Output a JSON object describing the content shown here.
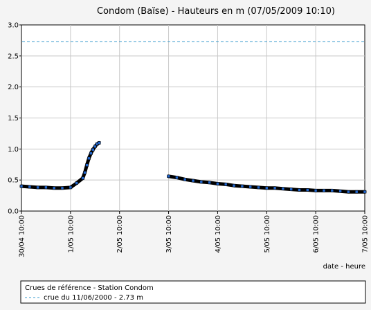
{
  "chart_data": {
    "type": "line",
    "title": "Condom (Baïse) - Hauteurs en m (07/05/2009 10:10)",
    "xlabel": "date - heure",
    "ylabel": "",
    "ylim": [
      0,
      3.0
    ],
    "xlim": [
      "30/04 10:00",
      "7/05 10:00"
    ],
    "y_ticks": [
      "0.0",
      "0.5",
      "1.0",
      "1.5",
      "2.0",
      "2.5",
      "3.0"
    ],
    "x_ticks": [
      "30/04 10:00",
      "1/05 10:00",
      "2/05 10:00",
      "3/05 10:00",
      "4/05 10:00",
      "5/05 10:00",
      "6/05 10:00",
      "7/05 10:00"
    ],
    "grid": true,
    "series": [
      {
        "name": "",
        "color": "#000000",
        "segments": [
          [
            {
              "x": "30/04 10:00",
              "y": 0.4
            },
            {
              "x": "30/04 14:00",
              "y": 0.39
            },
            {
              "x": "30/04 18:00",
              "y": 0.38
            },
            {
              "x": "30/04 22:00",
              "y": 0.38
            },
            {
              "x": "1/05 02:00",
              "y": 0.37
            },
            {
              "x": "1/05 06:00",
              "y": 0.37
            },
            {
              "x": "1/05 10:00",
              "y": 0.38
            },
            {
              "x": "1/05 13:00",
              "y": 0.45
            },
            {
              "x": "1/05 16:00",
              "y": 0.53
            },
            {
              "x": "1/05 17:00",
              "y": 0.62
            },
            {
              "x": "1/05 18:00",
              "y": 0.74
            },
            {
              "x": "1/05 19:00",
              "y": 0.85
            },
            {
              "x": "1/05 20:00",
              "y": 0.93
            },
            {
              "x": "1/05 21:00",
              "y": 0.99
            },
            {
              "x": "1/05 22:00",
              "y": 1.04
            },
            {
              "x": "1/05 23:00",
              "y": 1.08
            },
            {
              "x": "2/05 00:00",
              "y": 1.1
            }
          ],
          [
            {
              "x": "3/05 10:00",
              "y": 0.56
            },
            {
              "x": "3/05 14:00",
              "y": 0.54
            },
            {
              "x": "3/05 18:00",
              "y": 0.51
            },
            {
              "x": "3/05 22:00",
              "y": 0.49
            },
            {
              "x": "4/05 02:00",
              "y": 0.47
            },
            {
              "x": "4/05 06:00",
              "y": 0.46
            },
            {
              "x": "4/05 10:00",
              "y": 0.44
            },
            {
              "x": "4/05 14:00",
              "y": 0.43
            },
            {
              "x": "4/05 18:00",
              "y": 0.41
            },
            {
              "x": "4/05 22:00",
              "y": 0.4
            },
            {
              "x": "5/05 02:00",
              "y": 0.39
            },
            {
              "x": "5/05 06:00",
              "y": 0.38
            },
            {
              "x": "5/05 10:00",
              "y": 0.37
            },
            {
              "x": "5/05 14:00",
              "y": 0.37
            },
            {
              "x": "5/05 18:00",
              "y": 0.36
            },
            {
              "x": "5/05 22:00",
              "y": 0.35
            },
            {
              "x": "6/05 02:00",
              "y": 0.34
            },
            {
              "x": "6/05 06:00",
              "y": 0.34
            },
            {
              "x": "6/05 10:00",
              "y": 0.33
            },
            {
              "x": "6/05 14:00",
              "y": 0.33
            },
            {
              "x": "6/05 18:00",
              "y": 0.33
            },
            {
              "x": "6/05 22:00",
              "y": 0.32
            },
            {
              "x": "7/05 02:00",
              "y": 0.31
            },
            {
              "x": "7/05 06:00",
              "y": 0.31
            },
            {
              "x": "7/05 10:00",
              "y": 0.31
            }
          ]
        ]
      }
    ],
    "reference_lines": [
      {
        "name": "crue du 11/06/2000 - 2.73 m",
        "y": 2.73,
        "color": "#3399cc",
        "style": "dashed"
      }
    ]
  },
  "legend": {
    "title": "Crues de référence - Station Condom",
    "items": [
      "crue du 11/06/2000 - 2.73 m"
    ],
    "placement": "bottom"
  },
  "colors": {
    "background": "#f4f4f4",
    "plot_background": "#ffffff",
    "grid": "#c8c8c8",
    "series": "#000000",
    "reference": "#3399cc",
    "marker": "#2266cc"
  }
}
